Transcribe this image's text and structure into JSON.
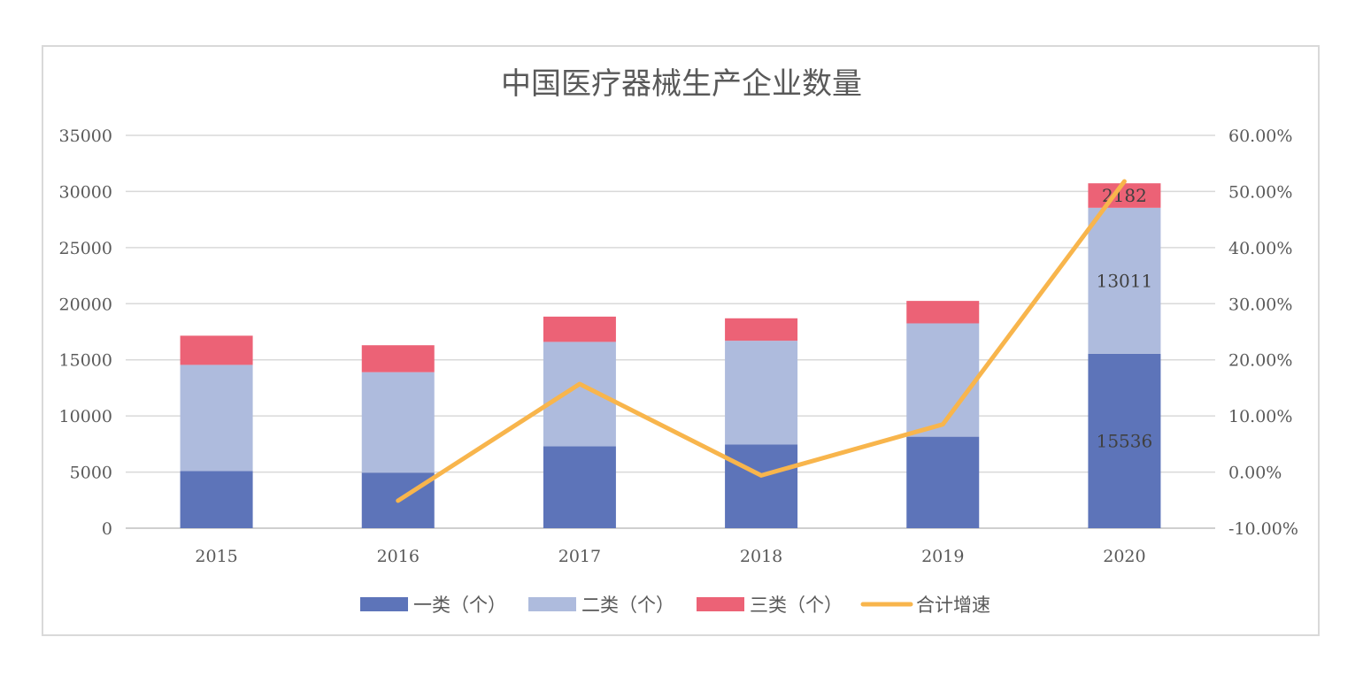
{
  "chart_data": {
    "type": "bar",
    "stacked": true,
    "title": "中国医疗器械生产企业数量",
    "categories": [
      "2015",
      "2016",
      "2017",
      "2018",
      "2019",
      "2020"
    ],
    "series": [
      {
        "name": "一类（个）",
        "type": "bar",
        "axis": "left",
        "color": "#5d74b9",
        "values": [
          5100,
          4950,
          7300,
          7450,
          8150,
          15536
        ]
      },
      {
        "name": "二类（个）",
        "type": "bar",
        "axis": "left",
        "color": "#aebbdd",
        "values": [
          9450,
          8950,
          9300,
          9250,
          10100,
          13011
        ]
      },
      {
        "name": "三类（个）",
        "type": "bar",
        "axis": "left",
        "color": "#ec6276",
        "values": [
          2600,
          2400,
          2250,
          2000,
          2000,
          2182
        ]
      },
      {
        "name": "合计增速",
        "type": "line",
        "axis": "right",
        "color": "#f8b54c",
        "values": [
          null,
          -5.1,
          15.7,
          -0.6,
          8.5,
          51.8
        ]
      }
    ],
    "data_labels": [
      {
        "series": "一类（个）",
        "category": "2020",
        "text": "15536"
      },
      {
        "series": "二类（个）",
        "category": "2020",
        "text": "13011"
      },
      {
        "series": "三类（个）",
        "category": "2020",
        "text": "2182"
      }
    ],
    "y_left": {
      "ticks": [
        "35000",
        "30000",
        "25000",
        "20000",
        "15000",
        "10000",
        "5000",
        "0"
      ],
      "ylim": [
        0,
        35000
      ]
    },
    "y_right": {
      "ticks": [
        "60.00%",
        "50.00%",
        "40.00%",
        "30.00%",
        "20.00%",
        "10.00%",
        "0.00%",
        "-10.00%"
      ],
      "ylim": [
        -10,
        60
      ]
    },
    "grid": true,
    "legend_position": "bottom"
  }
}
